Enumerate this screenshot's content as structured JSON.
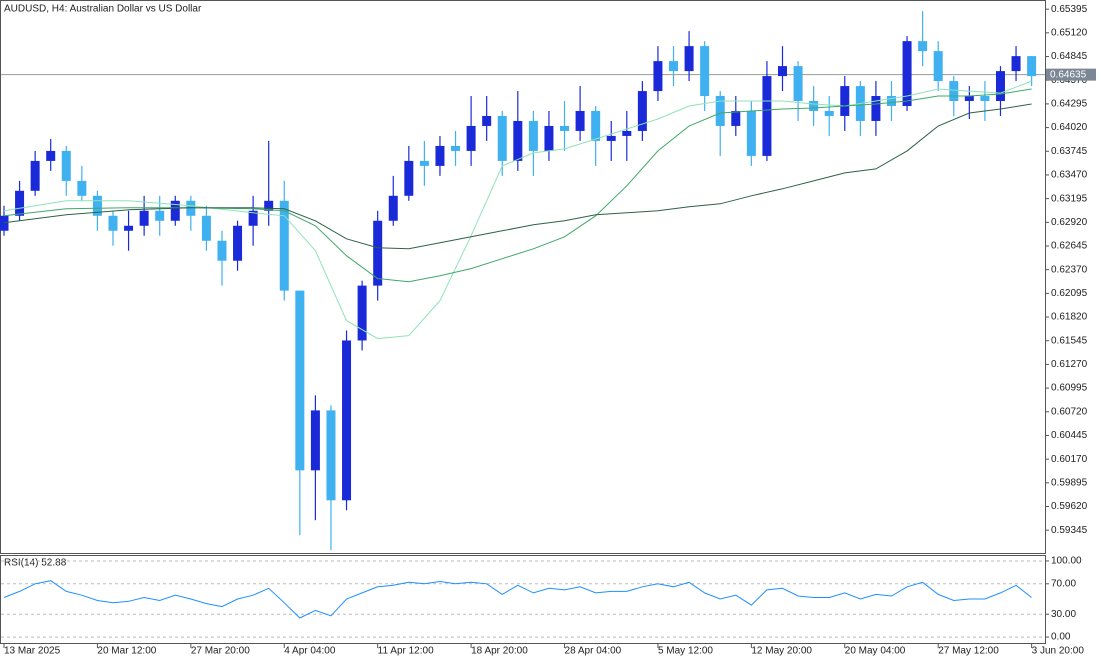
{
  "chart_data": [
    {
      "type": "candlestick",
      "title": "AUDUSD, H4:  Australian Dollar vs US Dollar",
      "categories": [
        "13 Mar 2025",
        null,
        null,
        null,
        null,
        null,
        "20 Mar 12:00",
        null,
        null,
        null,
        null,
        null,
        "27 Mar 20:00",
        null,
        null,
        null,
        null,
        null,
        "4 Apr 04:00",
        null,
        null,
        null,
        null,
        null,
        "11 Apr 12:00",
        null,
        null,
        null,
        null,
        null,
        "18 Apr 20:00",
        null,
        null,
        null,
        null,
        null,
        "28 Apr 04:00",
        null,
        null,
        null,
        null,
        null,
        "5 May 12:00",
        null,
        null,
        null,
        null,
        null,
        "12 May 20:00",
        null,
        null,
        null,
        null,
        null,
        "20 May 04:00",
        null,
        null,
        null,
        null,
        null,
        "27 May 12:00",
        null,
        null,
        null,
        null,
        null,
        "3 Jun 20:00"
      ],
      "up_color": "#1a2ad8",
      "down_color": "#3fb0f0",
      "ohlc": [
        [
          0.62822,
          0.63112,
          0.62764,
          0.62996
        ],
        [
          0.62996,
          0.63401,
          0.62938,
          0.63286
        ],
        [
          0.63286,
          0.63749,
          0.63228,
          0.63633
        ],
        [
          0.63633,
          0.63888,
          0.63517,
          0.63749
        ],
        [
          0.63749,
          0.63807,
          0.63228,
          0.63401
        ],
        [
          0.63401,
          0.63575,
          0.6317,
          0.63228
        ],
        [
          0.63228,
          0.63286,
          0.62822,
          0.62996
        ],
        [
          0.62996,
          0.63054,
          0.62648,
          0.62822
        ],
        [
          0.62822,
          0.63054,
          0.6259,
          0.6288
        ],
        [
          0.6288,
          0.63228,
          0.62764,
          0.63054
        ],
        [
          0.63054,
          0.63228,
          0.62764,
          0.62938
        ],
        [
          0.62938,
          0.63228,
          0.6288,
          0.6317
        ],
        [
          0.6317,
          0.63228,
          0.62822,
          0.62996
        ],
        [
          0.62996,
          0.63112,
          0.6259,
          0.62706
        ],
        [
          0.62706,
          0.62822,
          0.62185,
          0.62474
        ],
        [
          0.62474,
          0.62938,
          0.62358,
          0.6288
        ],
        [
          0.6288,
          0.63228,
          0.62648,
          0.63054
        ],
        [
          0.63054,
          0.63865,
          0.6288,
          0.6317
        ],
        [
          0.6317,
          0.63401,
          0.62011,
          0.62127
        ],
        [
          0.62127,
          0.62127,
          0.59287,
          0.6004
        ],
        [
          0.6004,
          0.6091,
          0.59461,
          0.60736
        ],
        [
          0.60736,
          0.60794,
          0.59113,
          0.59692
        ],
        [
          0.59692,
          0.61664,
          0.59577,
          0.61548
        ],
        [
          0.61548,
          0.62242,
          0.61432,
          0.62185
        ],
        [
          0.62185,
          0.63054,
          0.62011,
          0.62938
        ],
        [
          0.62938,
          0.63459,
          0.6288,
          0.63228
        ],
        [
          0.63228,
          0.63807,
          0.6317,
          0.63633
        ],
        [
          0.63633,
          0.63865,
          0.63344,
          0.63575
        ],
        [
          0.63575,
          0.63923,
          0.63459,
          0.63807
        ],
        [
          0.63807,
          0.63981,
          0.63575,
          0.63749
        ],
        [
          0.63749,
          0.64387,
          0.63575,
          0.64039
        ],
        [
          0.64039,
          0.64387,
          0.63865,
          0.64155
        ],
        [
          0.64155,
          0.64213,
          0.63459,
          0.63633
        ],
        [
          0.63633,
          0.64444,
          0.63517,
          0.64097
        ],
        [
          0.64097,
          0.64213,
          0.63459,
          0.63749
        ],
        [
          0.63749,
          0.64213,
          0.63633,
          0.64039
        ],
        [
          0.64039,
          0.64329,
          0.63749,
          0.63981
        ],
        [
          0.63981,
          0.64502,
          0.63865,
          0.64213
        ],
        [
          0.64213,
          0.64271,
          0.63575,
          0.63865
        ],
        [
          0.63865,
          0.64097,
          0.63633,
          0.63923
        ],
        [
          0.63923,
          0.64213,
          0.63633,
          0.63981
        ],
        [
          0.63981,
          0.6456,
          0.63865,
          0.64444
        ],
        [
          0.64444,
          0.64966,
          0.64329,
          0.64792
        ],
        [
          0.64792,
          0.64966,
          0.64502,
          0.64676
        ],
        [
          0.64676,
          0.6514,
          0.6456,
          0.64966
        ],
        [
          0.64966,
          0.65024,
          0.64213,
          0.64387
        ],
        [
          0.64387,
          0.64444,
          0.63691,
          0.64039
        ],
        [
          0.64039,
          0.64387,
          0.63923,
          0.64213
        ],
        [
          0.64213,
          0.64329,
          0.63575,
          0.63691
        ],
        [
          0.63691,
          0.64792,
          0.63633,
          0.64618
        ],
        [
          0.64618,
          0.64966,
          0.64444,
          0.64734
        ],
        [
          0.64734,
          0.64792,
          0.64097,
          0.64329
        ],
        [
          0.64329,
          0.64502,
          0.64039,
          0.64213
        ],
        [
          0.64213,
          0.64387,
          0.63923,
          0.64155
        ],
        [
          0.64155,
          0.64618,
          0.63981,
          0.64502
        ],
        [
          0.64502,
          0.6456,
          0.63923,
          0.64097
        ],
        [
          0.64097,
          0.6456,
          0.63923,
          0.64387
        ],
        [
          0.64387,
          0.6456,
          0.64097,
          0.64271
        ],
        [
          0.64271,
          0.65082,
          0.64213,
          0.65024
        ],
        [
          0.65024,
          0.65372,
          0.64734,
          0.64908
        ],
        [
          0.64908,
          0.65024,
          0.64444,
          0.6456
        ],
        [
          0.6456,
          0.64618,
          0.64155,
          0.64329
        ],
        [
          0.64329,
          0.64502,
          0.6412,
          0.64387
        ],
        [
          0.64387,
          0.6456,
          0.64097,
          0.64329
        ],
        [
          0.64329,
          0.64734,
          0.64155,
          0.64676
        ],
        [
          0.64676,
          0.64966,
          0.6456,
          0.6485
        ],
        [
          0.6485,
          0.6485,
          0.64502,
          0.64618
        ]
      ],
      "lines": [
        {
          "color": "#8fe3b8",
          "x": [
            0,
            4,
            8,
            12,
            16,
            18,
            20,
            22,
            24,
            26,
            28,
            30,
            32,
            34,
            36,
            38,
            40,
            42,
            44,
            46,
            48,
            50,
            52,
            54,
            56,
            58,
            60,
            62,
            64,
            66
          ],
          "values": [
            0.63054,
            0.6317,
            0.6317,
            0.63112,
            0.63031,
            0.62996,
            0.6259,
            0.61779,
            0.6157,
            0.61605,
            0.62011,
            0.62764,
            0.63575,
            0.63726,
            0.63772,
            0.63888,
            0.64004,
            0.6412,
            0.64271,
            0.64329,
            0.64329,
            0.64329,
            0.64294,
            0.64271,
            0.64329,
            0.64387,
            0.64468,
            0.64444,
            0.64421,
            0.6456
          ]
        },
        {
          "color": "#3fa86a",
          "x": [
            0,
            4,
            8,
            12,
            16,
            18,
            20,
            22,
            24,
            26,
            28,
            30,
            32,
            34,
            36,
            38,
            40,
            42,
            44,
            46,
            48,
            50,
            52,
            54,
            56,
            58,
            60,
            62,
            64,
            66
          ],
          "values": [
            0.62996,
            0.63077,
            0.63088,
            0.63088,
            0.63077,
            0.63054,
            0.6288,
            0.62532,
            0.62266,
            0.62231,
            0.623,
            0.62382,
            0.62497,
            0.62613,
            0.62752,
            0.62996,
            0.63344,
            0.63749,
            0.64039,
            0.6419,
            0.64213,
            0.64236,
            0.64247,
            0.64271,
            0.64294,
            0.64329,
            0.64387,
            0.64387,
            0.6441,
            0.64468
          ]
        },
        {
          "color": "#2d6246",
          "x": [
            0,
            4,
            8,
            12,
            16,
            18,
            20,
            22,
            24,
            26,
            28,
            30,
            32,
            34,
            36,
            38,
            40,
            42,
            44,
            46,
            48,
            50,
            52,
            54,
            56,
            58,
            60,
            62,
            64,
            66
          ],
          "values": [
            0.62915,
            0.63008,
            0.63065,
            0.63088,
            0.63088,
            0.63077,
            0.62938,
            0.62729,
            0.62625,
            0.62613,
            0.62683,
            0.62752,
            0.62822,
            0.62891,
            0.62938,
            0.63008,
            0.63031,
            0.63054,
            0.631,
            0.63135,
            0.63228,
            0.63309,
            0.63401,
            0.63494,
            0.6354,
            0.63749,
            0.64039,
            0.6419,
            0.64236,
            0.64294
          ]
        }
      ],
      "last_price": 0.64635,
      "ylim": [
        0.5908,
        0.6549
      ],
      "yticks": [
        0.65395,
        {
          "value": 0.6512,
          "label": "0.65120"
        },
        0.64845,
        {
          "value": 0.6457,
          "label": "0.64570"
        },
        0.64295,
        {
          "value": 0.6402,
          "label": "0.64020"
        },
        0.63745,
        {
          "value": 0.6347,
          "label": "0.63470"
        },
        0.63195,
        {
          "value": 0.6292,
          "label": "0.62920"
        },
        0.62645,
        {
          "value": 0.6237,
          "label": "0.62370"
        },
        0.62095,
        {
          "value": 0.6182,
          "label": "0.61820"
        },
        0.61545,
        {
          "value": 0.6127,
          "label": "0.61270"
        },
        0.60995,
        {
          "value": 0.6072,
          "label": "0.60720"
        },
        0.60445,
        {
          "value": 0.6017,
          "label": "0.60170"
        },
        0.59895,
        {
          "value": 0.5962,
          "label": "0.59620"
        },
        0.59345
      ]
    },
    {
      "type": "line",
      "title": "RSI(14) 52.88",
      "color": "#1e90ff",
      "values": [
        52,
        60,
        70,
        74,
        60,
        55,
        48,
        45,
        47,
        52,
        48,
        55,
        50,
        44,
        40,
        50,
        55,
        64,
        45,
        25,
        35,
        28,
        50,
        58,
        66,
        68,
        72,
        70,
        73,
        70,
        72,
        70,
        56,
        68,
        58,
        64,
        62,
        66,
        58,
        60,
        60,
        66,
        70,
        66,
        72,
        58,
        50,
        55,
        42,
        62,
        64,
        54,
        52,
        52,
        58,
        50,
        56,
        54,
        66,
        72,
        56,
        48,
        50,
        50,
        58,
        68,
        52
      ],
      "ylim": [
        -7.8,
        106.5
      ],
      "yticks": [
        {
          "value": 100,
          "label": "100.00"
        },
        {
          "value": 70,
          "label": "70.00"
        },
        {
          "value": 30,
          "label": "30.00"
        },
        {
          "value": 0,
          "label": "0.00"
        }
      ]
    }
  ]
}
